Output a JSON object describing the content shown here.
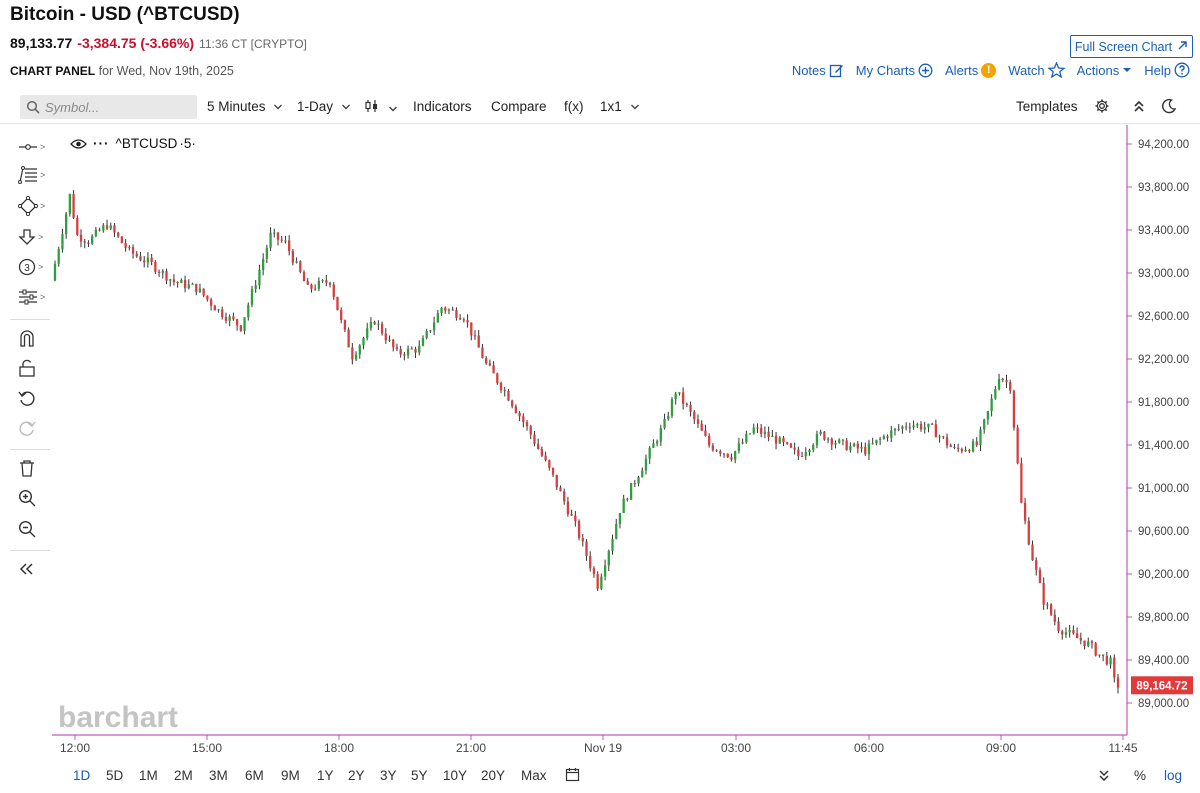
{
  "header": {
    "title": "Bitcoin - USD (^BTCUSD)",
    "price": "89,133.77",
    "change": "-3,384.75 (-3.66%)",
    "time": "11:36 CT [CRYPTO]",
    "fullscreen_label": "Full Screen Chart",
    "panel_label": "CHART PANEL",
    "panel_date": "for Wed, Nov 19th, 2025"
  },
  "top_links": {
    "notes": "Notes",
    "my_charts": "My Charts",
    "alerts": "Alerts",
    "alerts_badge": "!",
    "watch": "Watch",
    "actions": "Actions",
    "help": "Help"
  },
  "toolbar": {
    "symbol_placeholder": "Symbol...",
    "interval": "5 Minutes",
    "period": "1-Day",
    "indicators": "Indicators",
    "compare": "Compare",
    "fx": "f(x)",
    "layout": "1x1",
    "templates": "Templates"
  },
  "legend": {
    "symbol": "^BTCUSD",
    "interval": "5"
  },
  "watermark": "barchart",
  "range_buttons": [
    "1D",
    "5D",
    "1M",
    "2M",
    "3M",
    "6M",
    "9M",
    "1Y",
    "2Y",
    "3Y",
    "5Y",
    "10Y",
    "20Y",
    "Max"
  ],
  "active_range": "1D",
  "bottom_right": {
    "percent": "%",
    "log": "log"
  },
  "colors": {
    "up": "#2e9e3e",
    "down": "#d43f3f",
    "link": "#1a5fb4",
    "axis_line": "#c05ab8",
    "last_price_bg": "#e03a3a"
  },
  "chart_data": {
    "type": "candlestick",
    "symbol": "^BTCUSD",
    "interval": "5 Minutes",
    "period": "1-Day",
    "x_tick_labels": [
      "12:00",
      "15:00",
      "18:00",
      "21:00",
      "Nov 19",
      "03:00",
      "06:00",
      "09:00",
      "11:45"
    ],
    "y_tick_labels": [
      "94,200.00",
      "93,800.00",
      "93,400.00",
      "93,000.00",
      "92,600.00",
      "92,200.00",
      "91,800.00",
      "91,400.00",
      "91,000.00",
      "90,600.00",
      "90,200.00",
      "89,800.00",
      "89,400.00",
      "89,000.00"
    ],
    "ylim": [
      88800,
      94400
    ],
    "last_price": "89,164.72",
    "grid": false,
    "path_times": [
      "11:45",
      "12:00",
      "12:10",
      "12:20",
      "12:35",
      "13:00",
      "13:30",
      "14:00",
      "14:30",
      "15:00",
      "15:30",
      "16:00",
      "16:20",
      "16:40",
      "17:00",
      "17:30",
      "18:00",
      "18:15",
      "18:30",
      "19:00",
      "19:30",
      "20:00",
      "20:30",
      "21:00",
      "21:30",
      "22:00",
      "22:30",
      "23:00",
      "23:30",
      "00:00",
      "00:20",
      "00:30",
      "01:00",
      "01:30",
      "01:45",
      "02:00",
      "02:30",
      "03:00",
      "03:30",
      "04:00",
      "04:30",
      "05:00",
      "05:30",
      "06:00",
      "06:30",
      "07:00",
      "07:30",
      "08:00",
      "08:30",
      "08:45",
      "09:00",
      "09:15",
      "09:30",
      "09:45",
      "10:00",
      "10:20",
      "10:40",
      "11:00",
      "11:10",
      "11:20",
      "11:30",
      "11:36"
    ],
    "path_prices": [
      92930,
      93400,
      93720,
      93350,
      93300,
      93450,
      93200,
      93080,
      92920,
      92860,
      92650,
      92500,
      92920,
      93350,
      93280,
      92850,
      92930,
      92540,
      92230,
      92560,
      92250,
      92300,
      92680,
      92600,
      92150,
      91850,
      91500,
      91100,
      90650,
      90100,
      90550,
      90800,
      91200,
      91600,
      91900,
      91750,
      91400,
      91300,
      91550,
      91450,
      91300,
      91500,
      91400,
      91350,
      91500,
      91600,
      91550,
      91350,
      91400,
      91700,
      92050,
      91950,
      90850,
      90350,
      89950,
      89700,
      89620,
      89550,
      89480,
      89420,
      89380,
      89165
    ]
  }
}
